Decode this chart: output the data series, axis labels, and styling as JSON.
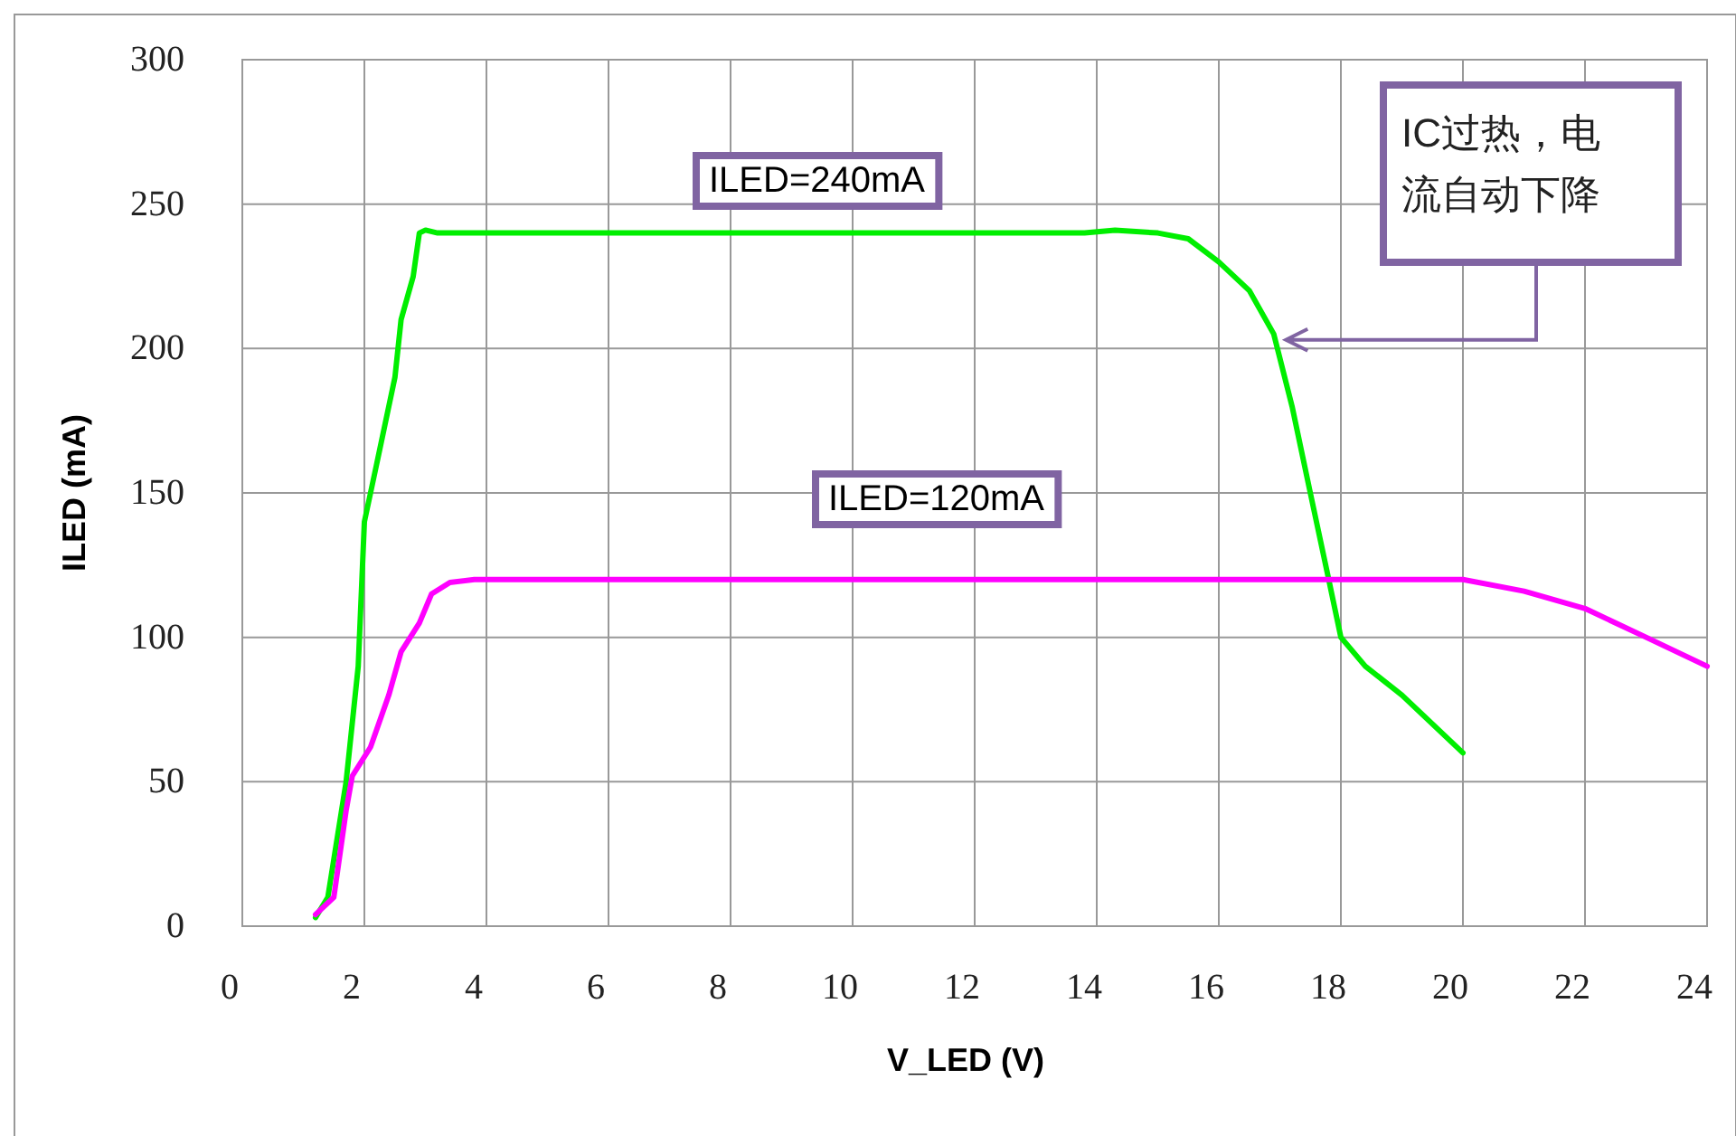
{
  "chart_data": {
    "type": "line",
    "xlabel": "V_LED (V)",
    "ylabel": "ILED (mA)",
    "xlim": [
      0,
      24
    ],
    "xticks": [
      0,
      2,
      4,
      6,
      8,
      10,
      12,
      14,
      16,
      18,
      20,
      22,
      24
    ],
    "ylim": [
      0,
      300
    ],
    "yticks": [
      0,
      50,
      100,
      150,
      200,
      250,
      300
    ],
    "grid": true,
    "marker": "none",
    "line_style": "solid",
    "series": [
      {
        "name": "ILED=240mA",
        "color": "#00ee00",
        "x": [
          1.2,
          1.4,
          1.7,
          1.9,
          2.0,
          2.2,
          2.5,
          2.6,
          2.8,
          2.9,
          3.0,
          3.2,
          13.8,
          14.3,
          15.0,
          15.5,
          16.0,
          16.5,
          16.9,
          17.2,
          17.5,
          17.8,
          18.0,
          18.4,
          19.0,
          20.0
        ],
        "values": [
          3,
          10,
          50,
          90,
          140,
          160,
          190,
          210,
          225,
          240,
          241,
          240,
          240,
          241,
          240,
          238,
          230,
          220,
          205,
          180,
          150,
          120,
          100,
          90,
          80,
          60
        ]
      },
      {
        "name": "ILED=120mA",
        "color": "#ff00ff",
        "x": [
          1.2,
          1.5,
          1.7,
          1.8,
          2.1,
          2.4,
          2.6,
          2.9,
          3.1,
          3.4,
          3.8,
          20.0,
          21.0,
          22.0,
          23.0,
          24.0
        ],
        "values": [
          4,
          10,
          40,
          52,
          62,
          80,
          95,
          105,
          115,
          119,
          120,
          120,
          116,
          110,
          100,
          90
        ]
      }
    ],
    "annotations": [
      {
        "text": "IC过热，电流自动下降",
        "x": 17.1,
        "y": 203
      }
    ]
  }
}
